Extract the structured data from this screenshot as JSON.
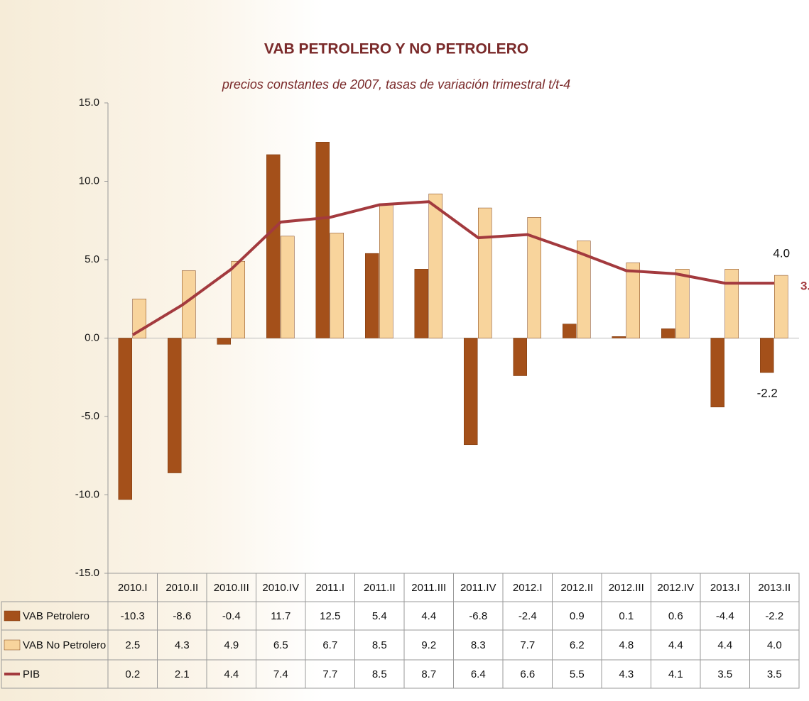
{
  "chart_data": {
    "type": "bar",
    "title": "VAB PETROLERO Y NO PETROLERO",
    "subtitle": "precios constantes de 2007, tasas de variación trimestral t/t-4",
    "categories": [
      "2010.I",
      "2010.II",
      "2010.III",
      "2010.IV",
      "2011.I",
      "2011.II",
      "2011.III",
      "2011.IV",
      "2012.I",
      "2012.II",
      "2012.III",
      "2012.IV",
      "2013.I",
      "2013.II"
    ],
    "series": [
      {
        "name": "VAB Petrolero",
        "color": "#a4501a",
        "type": "bar",
        "values": [
          -10.3,
          -8.6,
          -0.4,
          11.7,
          12.5,
          5.4,
          4.4,
          -6.8,
          -2.4,
          0.9,
          0.1,
          0.6,
          -4.4,
          -2.2
        ],
        "value_labels": [
          "-10.3",
          "-8.6",
          "-0.4",
          "11.7",
          "12.5",
          "5.4",
          "4.4",
          "-6.8",
          "-2.4",
          "0.9",
          "0.1",
          "0.6",
          "-4.4",
          "-2.2"
        ]
      },
      {
        "name": "VAB No Petrolero",
        "color": "#f8d49c",
        "type": "bar",
        "values": [
          2.5,
          4.3,
          4.9,
          6.5,
          6.7,
          8.5,
          9.2,
          8.3,
          7.7,
          6.2,
          4.8,
          4.4,
          4.4,
          4.0
        ],
        "value_labels": [
          "2.5",
          "4.3",
          "4.9",
          "6.5",
          "6.7",
          "8.5",
          "9.2",
          "8.3",
          "7.7",
          "6.2",
          "4.8",
          "4.4",
          "4.4",
          "4.0"
        ]
      },
      {
        "name": "PIB",
        "color": "#a33a3e",
        "type": "line",
        "values": [
          0.2,
          2.1,
          4.4,
          7.4,
          7.7,
          8.5,
          8.7,
          6.4,
          6.6,
          5.5,
          4.3,
          4.1,
          3.5,
          3.5
        ],
        "value_labels": [
          "0.2",
          "2.1",
          "4.4",
          "7.4",
          "7.7",
          "8.5",
          "8.7",
          "6.4",
          "6.6",
          "5.5",
          "4.3",
          "4.1",
          "3.5",
          "3.5"
        ]
      }
    ],
    "ylim": [
      -15,
      15
    ],
    "yticks": [
      {
        "value": 15,
        "label": "15.0"
      },
      {
        "value": 10,
        "label": "10.0"
      },
      {
        "value": 5,
        "label": "5.0"
      },
      {
        "value": 0,
        "label": "0.0"
      },
      {
        "value": -5,
        "label": "-5.0"
      },
      {
        "value": -10,
        "label": "-10.0"
      },
      {
        "value": -15,
        "label": "-15.0"
      }
    ]
  }
}
